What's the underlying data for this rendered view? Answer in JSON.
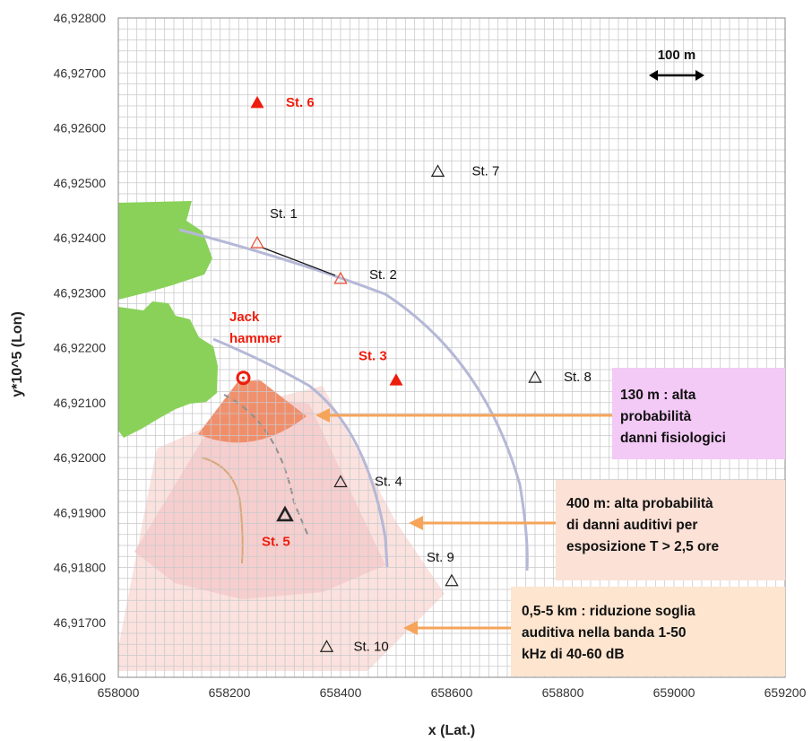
{
  "chart_data": {
    "type": "scatter",
    "xlabel": "x (Lat.)",
    "ylabel": "y*10^5 (Lon)",
    "xlim": [
      658000,
      659200
    ],
    "ylim": [
      46916000,
      46928000
    ],
    "xticks": [
      {
        "v": 658000,
        "t": "658000"
      },
      {
        "v": 658200,
        "t": "658200"
      },
      {
        "v": 658400,
        "t": "658400"
      },
      {
        "v": 658600,
        "t": "658600"
      },
      {
        "v": 658800,
        "t": "658800"
      },
      {
        "v": 659000,
        "t": "659000"
      },
      {
        "v": 659200,
        "t": "659200"
      }
    ],
    "yticks": [
      {
        "v": 46916000,
        "t": "46,91600"
      },
      {
        "v": 46917000,
        "t": "46,91700"
      },
      {
        "v": 46918000,
        "t": "46,91800"
      },
      {
        "v": 46919000,
        "t": "46,91900"
      },
      {
        "v": 46920000,
        "t": "46,92000"
      },
      {
        "v": 46921000,
        "t": "46,92100"
      },
      {
        "v": 46922000,
        "t": "46,92200"
      },
      {
        "v": 46923000,
        "t": "46,92300"
      },
      {
        "v": 46924000,
        "t": "46,92400"
      },
      {
        "v": 46925000,
        "t": "46,92500"
      },
      {
        "v": 46926000,
        "t": "46,92600"
      },
      {
        "v": 46927000,
        "t": "46,92700"
      },
      {
        "v": 46928000,
        "t": "46,92800"
      }
    ],
    "grid": true,
    "stations": [
      {
        "name": "St. 1",
        "x": 658250,
        "y": 46923900,
        "style": "hollow-red",
        "color": "#e8492f"
      },
      {
        "name": "St. 2",
        "x": 658400,
        "y": 46923250,
        "style": "hollow-red",
        "color": "#e8492f"
      },
      {
        "name": "St. 3",
        "x": 658500,
        "y": 46921400,
        "style": "filled-red",
        "color": "#ee1c0c"
      },
      {
        "name": "St. 4",
        "x": 658400,
        "y": 46919550,
        "style": "hollow-black",
        "color": "#222222"
      },
      {
        "name": "St. 5",
        "x": 658300,
        "y": 46918950,
        "style": "bold-black",
        "color": "#222222"
      },
      {
        "name": "St. 6",
        "x": 658250,
        "y": 46926450,
        "style": "filled-red",
        "color": "#ee1c0c"
      },
      {
        "name": "St. 7",
        "x": 658575,
        "y": 46925200,
        "style": "hollow-black",
        "color": "#222222"
      },
      {
        "name": "St. 8",
        "x": 658750,
        "y": 46921450,
        "style": "hollow-black",
        "color": "#222222"
      },
      {
        "name": "St. 9",
        "x": 658600,
        "y": 46917750,
        "style": "hollow-black",
        "color": "#222222"
      },
      {
        "name": "St. 10",
        "x": 658375,
        "y": 46916550,
        "style": "hollow-black",
        "color": "#222222"
      }
    ],
    "source": {
      "name": "Jack\nhammer",
      "x": 658225,
      "y": 46921450,
      "color": "#ee1c0c"
    },
    "scale_bar": {
      "label": "100 m",
      "length_m": 100
    },
    "zones": [
      {
        "radius_m": 130,
        "color": "#f08a64",
        "text": "130 m : alta\nprobabilità\ndanni fisiologici",
        "box_color": "#f3c9f6"
      },
      {
        "radius_m": 400,
        "color": "#f7cccc",
        "text": "400 m: alta probabilità\ndi danni  auditivi per\nesposizione T > 2,5  ore",
        "box_color": "#fbe1d6"
      },
      {
        "radius_m": 5000,
        "color": "#fbe0dc",
        "text": "0,5-5 km :  riduzione  soglia\nauditiva  nella banda 1-50\nkHz  di 40-60 dB",
        "box_color": "#fde5cf"
      }
    ],
    "arrow_color": "#f5a45a",
    "land_color": "#8ad15a",
    "contour_color": "#b5b8d6"
  }
}
